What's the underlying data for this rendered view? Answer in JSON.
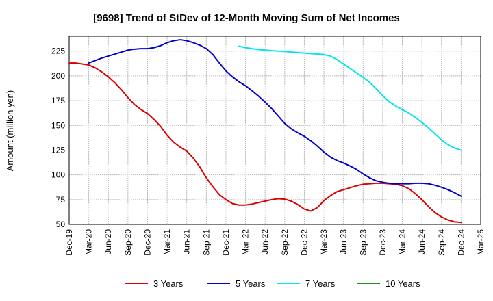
{
  "chart_data": {
    "type": "line",
    "title": "[9698]  Trend of StDev of 12-Month Moving Sum of Net Incomes",
    "xlabel": "",
    "ylabel": "Amount (million yen)",
    "ylim": [
      50,
      240
    ],
    "yticks": [
      50,
      75,
      100,
      125,
      150,
      175,
      200,
      225
    ],
    "x_ticks": [
      "Dec-19",
      "Mar-20",
      "Jun-20",
      "Sep-20",
      "Dec-20",
      "Mar-21",
      "Jun-21",
      "Sep-21",
      "Dec-21",
      "Mar-22",
      "Jun-22",
      "Sep-22",
      "Dec-22",
      "Mar-23",
      "Jun-23",
      "Sep-23",
      "Dec-23",
      "Mar-24",
      "Jun-24",
      "Sep-24",
      "Dec-24",
      "Mar-25"
    ],
    "grid": true,
    "legend_position": "bottom",
    "series": [
      {
        "name": "3 Years",
        "color": "#dd0000",
        "values": [
          [
            "2019-12",
            213
          ],
          [
            "2020-01",
            213
          ],
          [
            "2020-02",
            212
          ],
          [
            "2020-03",
            211
          ],
          [
            "2020-04",
            208
          ],
          [
            "2020-05",
            204
          ],
          [
            "2020-06",
            199
          ],
          [
            "2020-07",
            193
          ],
          [
            "2020-08",
            186
          ],
          [
            "2020-09",
            178
          ],
          [
            "2020-10",
            171
          ],
          [
            "2020-11",
            166
          ],
          [
            "2020-12",
            162
          ],
          [
            "2021-01",
            156
          ],
          [
            "2021-02",
            149
          ],
          [
            "2021-03",
            140
          ],
          [
            "2021-04",
            133
          ],
          [
            "2021-05",
            128
          ],
          [
            "2021-06",
            124
          ],
          [
            "2021-07",
            117
          ],
          [
            "2021-08",
            108
          ],
          [
            "2021-09",
            97
          ],
          [
            "2021-10",
            88
          ],
          [
            "2021-11",
            80
          ],
          [
            "2021-12",
            75
          ],
          [
            "2022-01",
            71
          ],
          [
            "2022-02",
            69.5
          ],
          [
            "2022-03",
            69.5
          ],
          [
            "2022-04",
            70.5
          ],
          [
            "2022-05",
            72
          ],
          [
            "2022-06",
            73.5
          ],
          [
            "2022-07",
            75
          ],
          [
            "2022-08",
            76
          ],
          [
            "2022-09",
            75.5
          ],
          [
            "2022-10",
            73.5
          ],
          [
            "2022-11",
            70
          ],
          [
            "2022-12",
            65.5
          ],
          [
            "2023-01",
            63.5
          ],
          [
            "2023-02",
            67
          ],
          [
            "2023-03",
            74
          ],
          [
            "2023-04",
            79
          ],
          [
            "2023-05",
            83
          ],
          [
            "2023-06",
            85
          ],
          [
            "2023-07",
            87
          ],
          [
            "2023-08",
            89
          ],
          [
            "2023-09",
            90.5
          ],
          [
            "2023-10",
            91
          ],
          [
            "2023-11",
            91.5
          ],
          [
            "2023-12",
            91.5
          ],
          [
            "2024-01",
            91
          ],
          [
            "2024-02",
            90.5
          ],
          [
            "2024-03",
            89
          ],
          [
            "2024-04",
            86
          ],
          [
            "2024-05",
            81
          ],
          [
            "2024-06",
            75
          ],
          [
            "2024-07",
            68
          ],
          [
            "2024-08",
            62
          ],
          [
            "2024-09",
            57.5
          ],
          [
            "2024-10",
            54.5
          ],
          [
            "2024-11",
            52.5
          ],
          [
            "2024-12",
            52
          ]
        ]
      },
      {
        "name": "5 Years",
        "color": "#0000cc",
        "values": [
          [
            "2020-03",
            213
          ],
          [
            "2020-04",
            215.5
          ],
          [
            "2020-05",
            218
          ],
          [
            "2020-06",
            220
          ],
          [
            "2020-07",
            222
          ],
          [
            "2020-08",
            224
          ],
          [
            "2020-09",
            226
          ],
          [
            "2020-10",
            227
          ],
          [
            "2020-11",
            227.5
          ],
          [
            "2020-12",
            227.5
          ],
          [
            "2021-01",
            228.5
          ],
          [
            "2021-02",
            230.5
          ],
          [
            "2021-03",
            233.5
          ],
          [
            "2021-04",
            235.5
          ],
          [
            "2021-05",
            236.5
          ],
          [
            "2021-06",
            235.5
          ],
          [
            "2021-07",
            233.5
          ],
          [
            "2021-08",
            231
          ],
          [
            "2021-09",
            227.5
          ],
          [
            "2021-10",
            221.5
          ],
          [
            "2021-11",
            213
          ],
          [
            "2021-12",
            205
          ],
          [
            "2022-01",
            199
          ],
          [
            "2022-02",
            194
          ],
          [
            "2022-03",
            190
          ],
          [
            "2022-04",
            185
          ],
          [
            "2022-05",
            179.5
          ],
          [
            "2022-06",
            173.5
          ],
          [
            "2022-07",
            167
          ],
          [
            "2022-08",
            159.5
          ],
          [
            "2022-09",
            152
          ],
          [
            "2022-10",
            146.5
          ],
          [
            "2022-11",
            142.5
          ],
          [
            "2022-12",
            139
          ],
          [
            "2023-01",
            134.5
          ],
          [
            "2023-02",
            129
          ],
          [
            "2023-03",
            123
          ],
          [
            "2023-04",
            118
          ],
          [
            "2023-05",
            114.5
          ],
          [
            "2023-06",
            112
          ],
          [
            "2023-07",
            109
          ],
          [
            "2023-08",
            105.5
          ],
          [
            "2023-09",
            101
          ],
          [
            "2023-10",
            97
          ],
          [
            "2023-11",
            94
          ],
          [
            "2023-12",
            92.5
          ],
          [
            "2024-01",
            91.5
          ],
          [
            "2024-02",
            91
          ],
          [
            "2024-03",
            91
          ],
          [
            "2024-04",
            91
          ],
          [
            "2024-05",
            91.5
          ],
          [
            "2024-06",
            91.5
          ],
          [
            "2024-07",
            91
          ],
          [
            "2024-08",
            89.5
          ],
          [
            "2024-09",
            87.5
          ],
          [
            "2024-10",
            85
          ],
          [
            "2024-11",
            82
          ],
          [
            "2024-12",
            78.5
          ]
        ]
      },
      {
        "name": "7 Years",
        "color": "#00e5ee",
        "values": [
          [
            "2022-02",
            230
          ],
          [
            "2022-03",
            228.5
          ],
          [
            "2022-04",
            227.5
          ],
          [
            "2022-05",
            226.5
          ],
          [
            "2022-06",
            226
          ],
          [
            "2022-07",
            225.5
          ],
          [
            "2022-08",
            225
          ],
          [
            "2022-09",
            224.5
          ],
          [
            "2022-10",
            224
          ],
          [
            "2022-11",
            223.5
          ],
          [
            "2022-12",
            223
          ],
          [
            "2023-01",
            222.5
          ],
          [
            "2023-02",
            222
          ],
          [
            "2023-03",
            221.5
          ],
          [
            "2023-04",
            220
          ],
          [
            "2023-05",
            216.5
          ],
          [
            "2023-06",
            212
          ],
          [
            "2023-07",
            207.5
          ],
          [
            "2023-08",
            203
          ],
          [
            "2023-09",
            198.5
          ],
          [
            "2023-10",
            193.5
          ],
          [
            "2023-11",
            187
          ],
          [
            "2023-12",
            180
          ],
          [
            "2024-01",
            174
          ],
          [
            "2024-02",
            169.5
          ],
          [
            "2024-03",
            166
          ],
          [
            "2024-04",
            162.5
          ],
          [
            "2024-05",
            158
          ],
          [
            "2024-06",
            153
          ],
          [
            "2024-07",
            147.5
          ],
          [
            "2024-08",
            141.5
          ],
          [
            "2024-09",
            135.5
          ],
          [
            "2024-10",
            130.5
          ],
          [
            "2024-11",
            127
          ],
          [
            "2024-12",
            125
          ]
        ]
      },
      {
        "name": "10 Years",
        "color": "#228b22",
        "values": []
      }
    ]
  }
}
